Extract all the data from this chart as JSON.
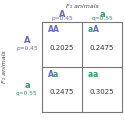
{
  "title_top": "F₁ animals",
  "title_left": "F₁ animals",
  "col_labels": [
    "A",
    "a"
  ],
  "col_sublabels": [
    "p=0.45",
    "q=0.55"
  ],
  "row_labels": [
    "A",
    "a"
  ],
  "row_sublabels": [
    "p=0.45",
    "q=0.55"
  ],
  "cells": [
    {
      "genotype": "AA",
      "value": "0.2025",
      "row": 0,
      "col": 0
    },
    {
      "genotype": "aA",
      "value": "0.2475",
      "row": 0,
      "col": 1
    },
    {
      "genotype": "Aa",
      "value": "0.2475",
      "row": 1,
      "col": 0
    },
    {
      "genotype": "aa",
      "value": "0.3025",
      "row": 1,
      "col": 1
    }
  ],
  "color_A": "#6666cc",
  "color_a": "#339966",
  "color_value": "#333333",
  "bg_color": "#ffffff",
  "grid_color": "#777777",
  "title_color": "#444444"
}
